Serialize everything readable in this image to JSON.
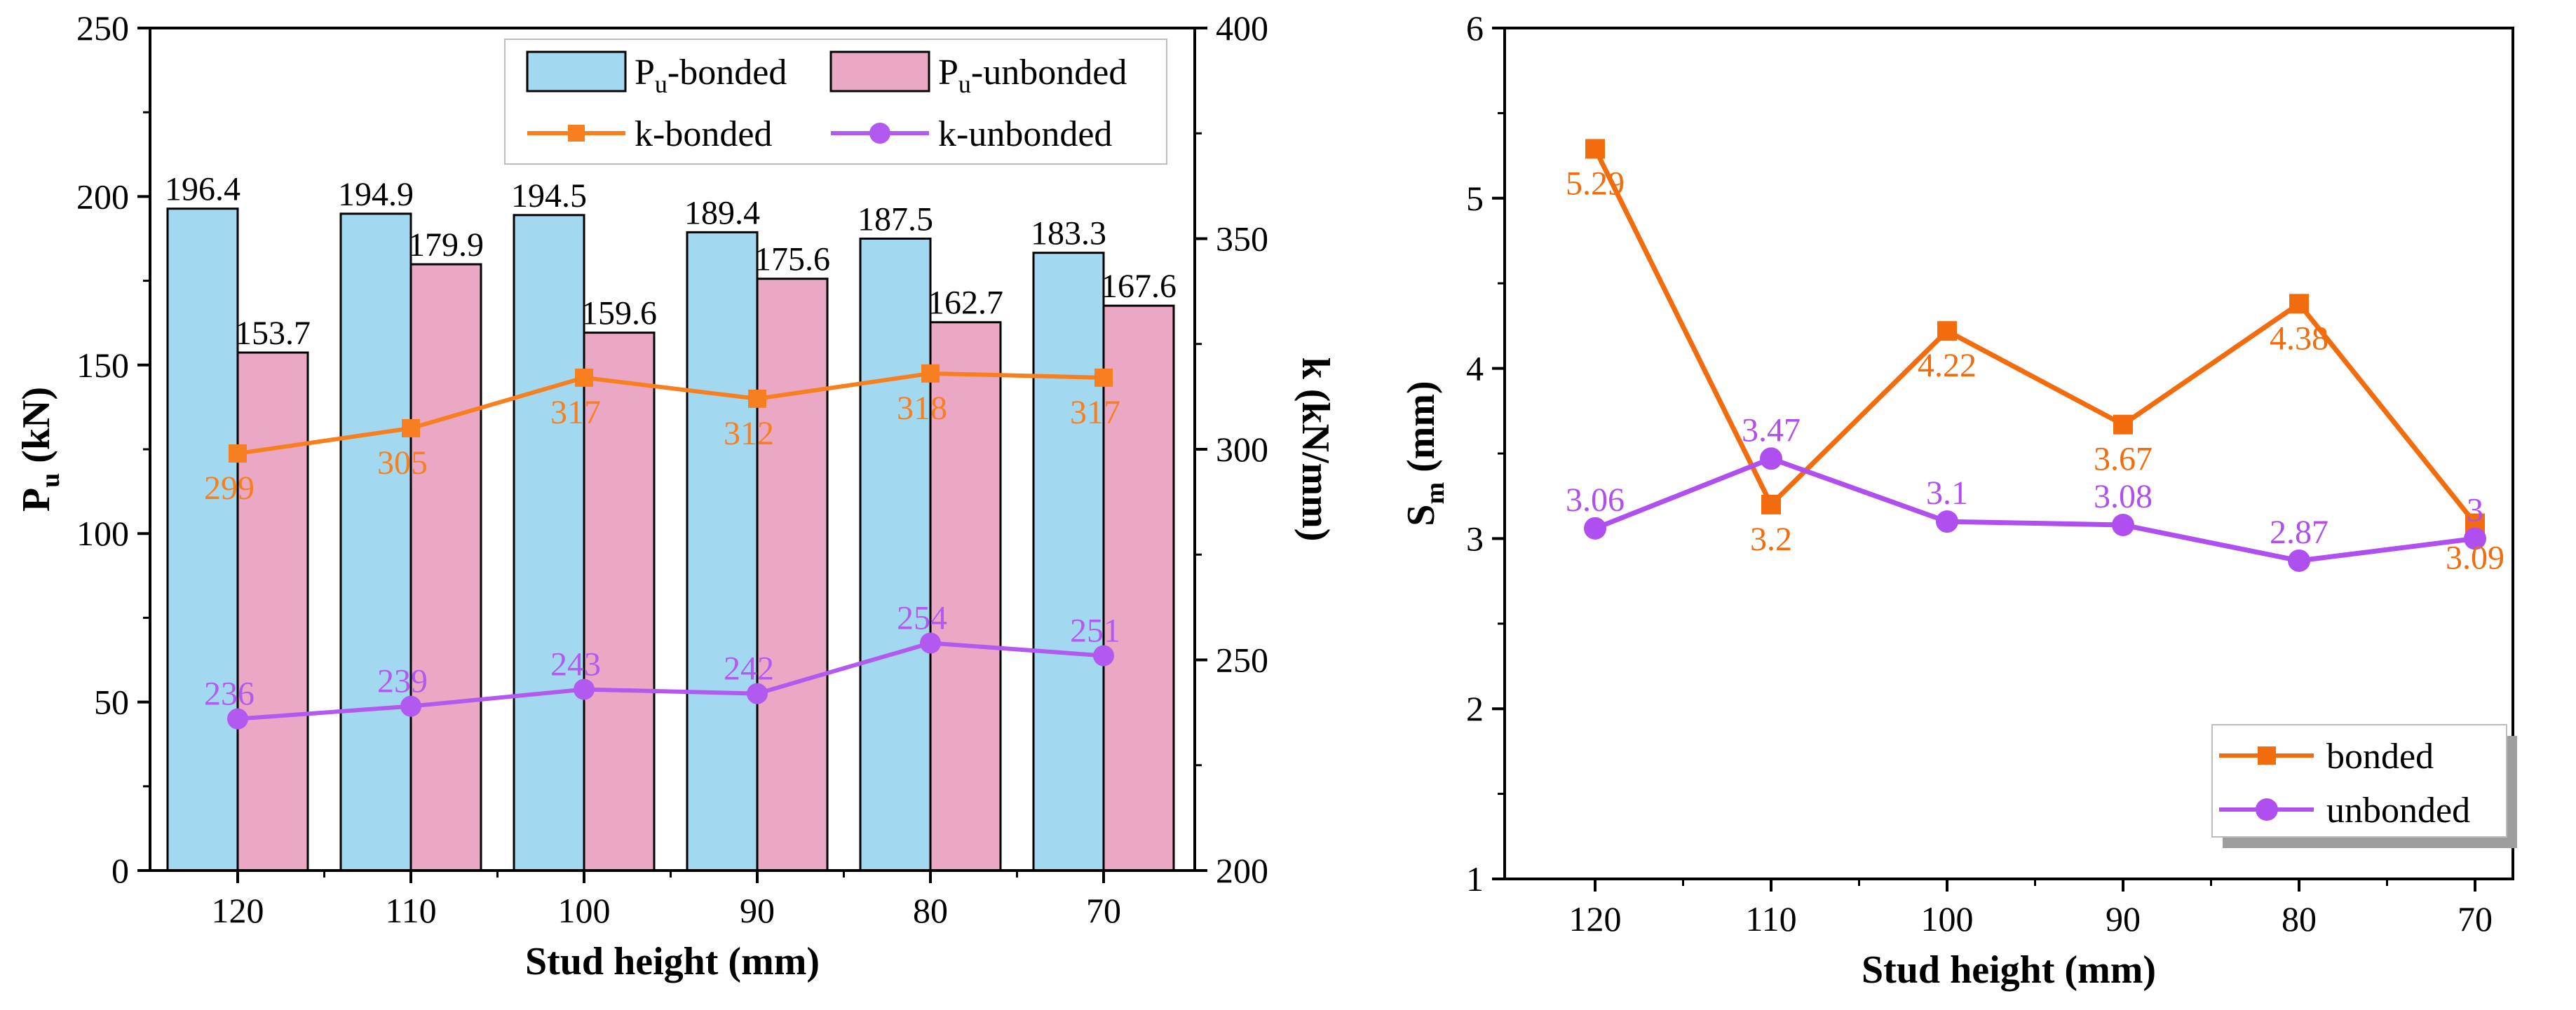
{
  "chart_data": [
    {
      "type": "bar",
      "title": "",
      "xlabel": "Stud height (mm)",
      "ylabel": "P",
      "ylabel_sub": "u",
      "ylabel_unit": " (kN)",
      "y2label": "k (kN/mm)",
      "categories": [
        "120",
        "110",
        "100",
        "90",
        "80",
        "70"
      ],
      "ylim": [
        0,
        250
      ],
      "yticks": [
        0,
        50,
        100,
        150,
        200,
        250
      ],
      "y2lim": [
        200,
        400
      ],
      "y2ticks": [
        200,
        250,
        300,
        350,
        400
      ],
      "bar_series": [
        {
          "name": "P",
          "name_sub": "u",
          "name_suffix": "-bonded",
          "color": "#a2d9f1",
          "values": [
            196.4,
            194.9,
            194.5,
            189.4,
            187.5,
            183.3
          ],
          "labels": [
            "196.4",
            "194.9",
            "194.5",
            "189.4",
            "187.5",
            "183.3"
          ]
        },
        {
          "name": "P",
          "name_sub": "u",
          "name_suffix": "-unbonded",
          "color": "#eba8c4",
          "values": [
            153.7,
            179.9,
            159.6,
            175.6,
            162.7,
            167.6
          ],
          "labels": [
            "153.7",
            "179.9",
            "159.6",
            "175.6",
            "162.7",
            "167.6"
          ]
        }
      ],
      "line_series": [
        {
          "name": "k-bonded",
          "color": "#f77f1f",
          "marker": "square",
          "axis": "y2",
          "values": [
            299,
            305,
            317,
            312,
            318,
            317
          ],
          "labels": [
            "299",
            "305",
            "317",
            "312",
            "318",
            "317"
          ]
        },
        {
          "name": "k-unbonded",
          "color": "#b25aef",
          "marker": "circle",
          "axis": "y2",
          "values": [
            236,
            239,
            243,
            242,
            254,
            251
          ],
          "labels": [
            "236",
            "239",
            "243",
            "242",
            "254",
            "251"
          ]
        }
      ],
      "legend": "top-right"
    },
    {
      "type": "line",
      "title": "",
      "xlabel": "Stud height (mm)",
      "ylabel": "S",
      "ylabel_sub": "m",
      "ylabel_unit": " (mm)",
      "categories": [
        "120",
        "110",
        "100",
        "90",
        "80",
        "70"
      ],
      "ylim": [
        1,
        6
      ],
      "yticks": [
        1,
        2,
        3,
        4,
        5,
        6
      ],
      "series": [
        {
          "name": "bonded",
          "color": "#f26c0e",
          "marker": "square",
          "values": [
            5.29,
            3.2,
            4.22,
            3.67,
            4.38,
            3.09
          ],
          "labels": [
            "5.29",
            "3.2",
            "4.22",
            "3.67",
            "4.38",
            "3.09"
          ]
        },
        {
          "name": "unbonded",
          "color": "#b04ff0",
          "marker": "circle",
          "values": [
            3.06,
            3.47,
            3.1,
            3.08,
            2.87,
            3
          ],
          "labels": [
            "3.06",
            "3.47",
            "3.1",
            "3.08",
            "2.87",
            "3"
          ]
        }
      ],
      "legend": "bottom-right"
    }
  ]
}
